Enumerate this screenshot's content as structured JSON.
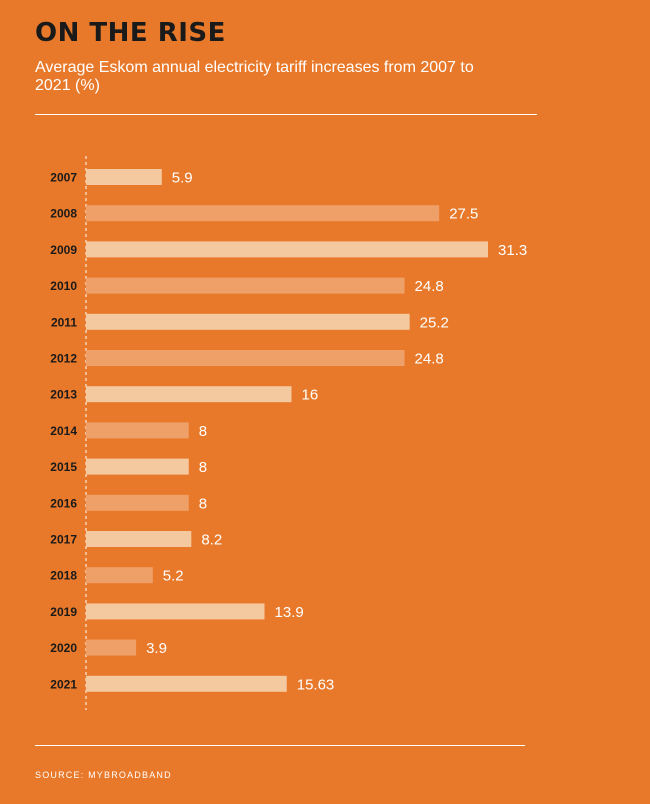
{
  "title": "ON THE RISE",
  "subtitle": "Average Eskom annual electricity tariff increases from 2007 to 2021 (%)",
  "source": "SOURCE: MYBROADBAND",
  "colors": {
    "background": "#E8792A",
    "bar_light": "#F5C9A0",
    "bar_dark": "#EFA069",
    "title": "#1a1a1a",
    "text": "#ffffff"
  },
  "chart_data": {
    "type": "bar",
    "orientation": "horizontal",
    "categories": [
      "2007",
      "2008",
      "2009",
      "2010",
      "2011",
      "2012",
      "2013",
      "2014",
      "2015",
      "2016",
      "2017",
      "2018",
      "2019",
      "2020",
      "2021"
    ],
    "values": [
      5.9,
      27.5,
      31.3,
      24.8,
      25.2,
      24.8,
      16,
      8,
      8,
      8,
      8.2,
      5.2,
      13.9,
      3.9,
      15.63
    ],
    "value_labels": [
      "5.9",
      "27.5",
      "31.3",
      "24.8",
      "25.2",
      "24.8",
      "16",
      "8",
      "8",
      "8",
      "8.2",
      "5.2",
      "13.9",
      "3.9",
      "15.63"
    ],
    "xlim": [
      0,
      31.3
    ],
    "grid": false,
    "legend": "none"
  }
}
